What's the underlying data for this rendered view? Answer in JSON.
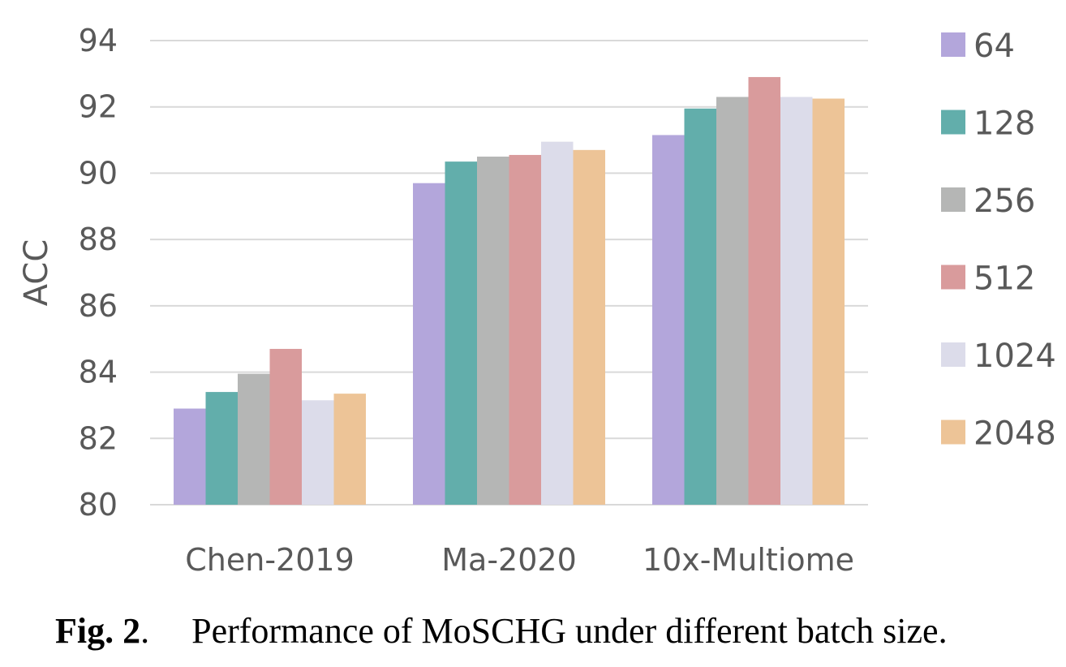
{
  "chart_data": {
    "type": "bar",
    "categories": [
      "Chen-2019",
      "Ma-2020",
      "10x-Multiome"
    ],
    "series": [
      {
        "name": "64",
        "color": "#b3a6db",
        "values": [
          82.9,
          89.7,
          91.15
        ]
      },
      {
        "name": "128",
        "color": "#62aeab",
        "values": [
          83.4,
          90.35,
          91.95
        ]
      },
      {
        "name": "256",
        "color": "#b5b6b5",
        "values": [
          83.95,
          90.5,
          92.3
        ]
      },
      {
        "name": "512",
        "color": "#d99b9c",
        "values": [
          84.7,
          90.55,
          92.9
        ]
      },
      {
        "name": "1024",
        "color": "#dcdcea",
        "values": [
          83.15,
          90.95,
          92.3
        ]
      },
      {
        "name": "2048",
        "color": "#edc497",
        "values": [
          83.35,
          90.7,
          92.25
        ]
      }
    ],
    "yticks": [
      "80",
      "82",
      "84",
      "86",
      "88",
      "90",
      "92",
      "94"
    ],
    "ylim": [
      80,
      94
    ],
    "ylabel": "ACC",
    "xlabel": "",
    "grid": true,
    "legend_position": "right"
  },
  "caption": {
    "fig": "Fig. 2",
    "sep": ".",
    "text": "Performance of MoSCHG under different batch size."
  }
}
